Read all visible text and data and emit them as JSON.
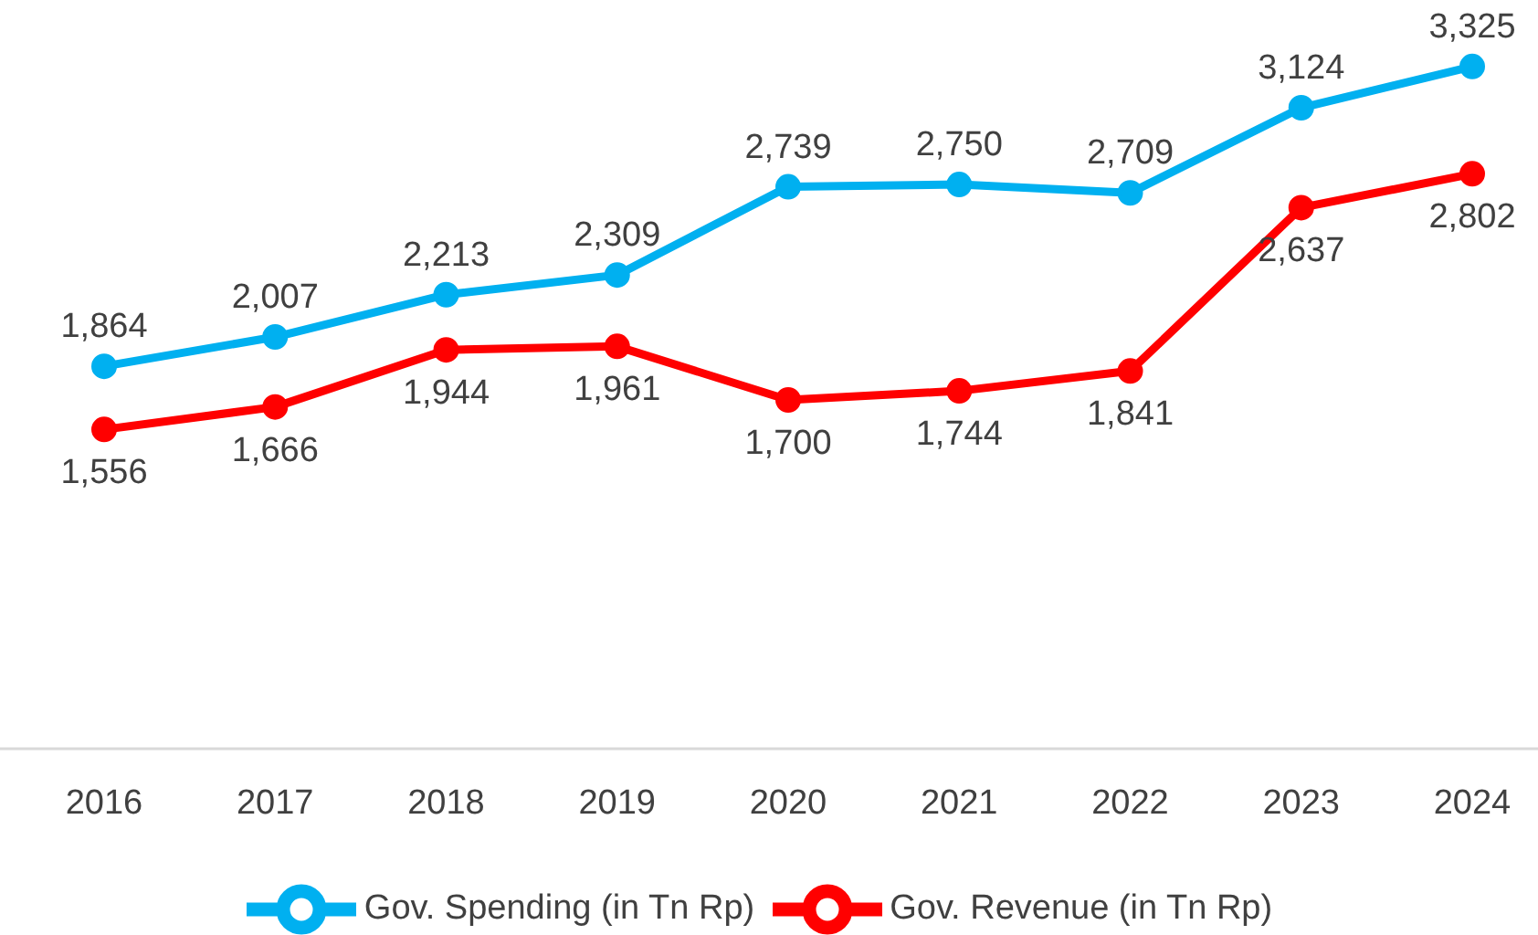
{
  "chart_data": {
    "type": "line",
    "categories": [
      "2016",
      "2017",
      "2018",
      "2019",
      "2020",
      "2021",
      "2022",
      "2023",
      "2024"
    ],
    "series": [
      {
        "name": "Gov. Spending (in Tn Rp)",
        "color": "#00b0f0",
        "values": [
          1864,
          2007,
          2213,
          2309,
          2739,
          2750,
          2709,
          3124,
          3325
        ],
        "value_labels": [
          "1,864",
          "2,007",
          "2,213",
          "2,309",
          "2,739",
          "2,750",
          "2,709",
          "3,124",
          "3,325"
        ]
      },
      {
        "name": "Gov. Revenue (in Tn Rp)",
        "color": "#ff0000",
        "values": [
          1556,
          1666,
          1944,
          1961,
          1700,
          1744,
          1841,
          2637,
          2802
        ],
        "value_labels": [
          "1,556",
          "1,666",
          "1,944",
          "1,961",
          "1,700",
          "1,744",
          "1,841",
          "2,637",
          "2,802"
        ]
      }
    ],
    "tick_labels": "x",
    "marker": "circle",
    "line_style": "solid",
    "legend": "bottom"
  }
}
